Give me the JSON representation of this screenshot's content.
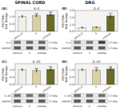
{
  "chart_data": [
    {
      "type": "bar",
      "title": "SPINAL CORD",
      "subtitle": "IL-4",
      "annotations": [
        "(A)"
      ],
      "categories": [
        "VEHICLE",
        "E",
        "LPS/RSG"
      ],
      "values": [
        1.0,
        1.05,
        1.12
      ],
      "errors": [
        0.06,
        0.05,
        0.07
      ],
      "colors": [
        "#f0f0e8",
        "#ddd0a0",
        "#6b6b28"
      ],
      "ylabel": "PROTEIN\nfold change",
      "ylim": [
        0,
        1.4
      ],
      "yticks": [
        {
          "value": 0.0,
          "label": "0.0"
        },
        {
          "value": 0.5,
          "label": "0.5"
        },
        {
          "value": 1.0,
          "label": "1.0"
        }
      ],
      "sig": [
        null,
        "ns",
        "ns"
      ],
      "blot": {
        "rows": [
          {
            "label": "IL-4",
            "kda": "17 kDa",
            "colors": [
              "#737373",
              "#6b6b6b",
              "#666666"
            ]
          },
          {
            "label": "GAPDH",
            "kda": "37 kDa",
            "colors": [
              "#595959",
              "#595959",
              "#595959"
            ]
          }
        ]
      }
    },
    {
      "type": "bar",
      "subtitle": "IL-10",
      "annotations": [
        "(C)"
      ],
      "categories": [
        "VEHICLE",
        "E",
        "LPS/RSG"
      ],
      "values": [
        1.0,
        0.93,
        1.02
      ],
      "errors": [
        0.06,
        0.07,
        0.06
      ],
      "colors": [
        "#f0f0e8",
        "#ddd0a0",
        "#6b6b28"
      ],
      "ylabel": "PROTEIN\nfold change",
      "ylim": [
        0,
        1.4
      ],
      "yticks": [
        {
          "value": 0.0,
          "label": "0.0"
        },
        {
          "value": 0.5,
          "label": "0.5"
        },
        {
          "value": 1.0,
          "label": "1.0"
        }
      ],
      "sig": [
        null,
        "ns",
        "ns"
      ],
      "blot": {
        "rows": [
          {
            "label": "IL-10",
            "kda": "17 kDa",
            "colors": [
              "#737373",
              "#737373",
              "#6e6e6e"
            ]
          },
          {
            "label": "GAPDH",
            "kda": "37 kDa",
            "colors": [
              "#595959",
              "#595959",
              "#595959"
            ]
          }
        ]
      }
    },
    {
      "type": "bar",
      "title": "DRG",
      "subtitle": "IL-4",
      "annotations": [
        "(B)"
      ],
      "categories": [
        "VEHICLE",
        "E",
        "LPS/RSG"
      ],
      "values": [
        0.55,
        0.6,
        2.2
      ],
      "errors": [
        0.07,
        0.06,
        0.18
      ],
      "colors": [
        "#f0f0e8",
        "#ddd0a0",
        "#6b6b28"
      ],
      "ylabel": "PROTEIN\nfold change",
      "ylim": [
        0,
        3.0
      ],
      "yticks": [
        {
          "value": 0.0,
          "label": "0.0"
        },
        {
          "value": 1.0,
          "label": "1.0"
        },
        {
          "value": 2.0,
          "label": "2.0"
        },
        {
          "value": 3.0,
          "label": "3.0"
        }
      ],
      "sig": [
        null,
        null,
        "***"
      ],
      "blot": {
        "rows": [
          {
            "label": "IL-4",
            "kda": "17 kDa",
            "colors": [
              "#808080",
              "#7a7a7a",
              "#404040"
            ]
          },
          {
            "label": "GAPDH",
            "kda": "37 kDa",
            "colors": [
              "#595959",
              "#595959",
              "#595959"
            ]
          }
        ]
      }
    },
    {
      "type": "bar",
      "subtitle": "IL-10",
      "annotations": [
        "(D)"
      ],
      "categories": [
        "VEHICLE",
        "E",
        "LPS/RSG"
      ],
      "values": [
        1.0,
        0.97,
        1.04
      ],
      "errors": [
        0.06,
        0.05,
        0.07
      ],
      "colors": [
        "#f0f0e8",
        "#ddd0a0",
        "#6b6b28"
      ],
      "ylabel": "PROTEIN\nfold change",
      "ylim": [
        0,
        1.4
      ],
      "yticks": [
        {
          "value": 0.0,
          "label": "0.0"
        },
        {
          "value": 0.5,
          "label": "0.5"
        },
        {
          "value": 1.0,
          "label": "1.0"
        }
      ],
      "sig": [
        null,
        "ns",
        "ns"
      ],
      "blot": {
        "rows": [
          {
            "label": "IL-10",
            "kda": "17 kDa",
            "colors": [
              "#737373",
              "#737373",
              "#6e6e6e"
            ]
          },
          {
            "label": "GAPDH",
            "kda": "37 kDa",
            "colors": [
              "#595959",
              "#595959",
              "#595959"
            ]
          }
        ]
      }
    }
  ]
}
